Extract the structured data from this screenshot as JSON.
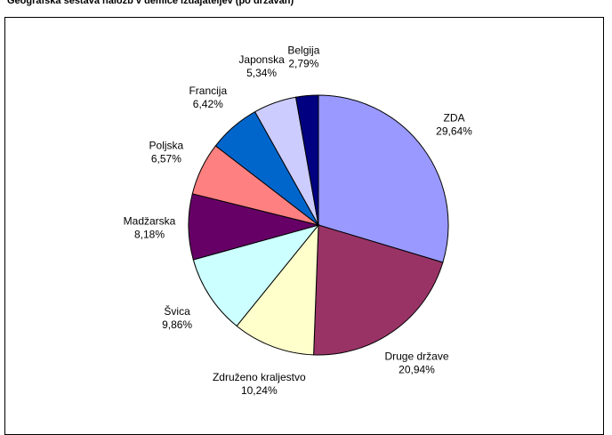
{
  "chart_data": {
    "type": "pie",
    "title": "Geografska sestava naložb v demice izdajateljev (po državah)",
    "start_angle_deg": 0,
    "direction": "clockwise",
    "slices": [
      {
        "label": "ZDA",
        "value": 29.64,
        "value_label": "29,64%",
        "color": "#9999ff"
      },
      {
        "label": "Druge države",
        "value": 20.94,
        "value_label": "20,94%",
        "color": "#993366"
      },
      {
        "label": "Združeno kraljestvo",
        "value": 10.24,
        "value_label": "10,24%",
        "color": "#ffffcc"
      },
      {
        "label": "Švica",
        "value": 9.86,
        "value_label": "9,86%",
        "color": "#ccffff"
      },
      {
        "label": "Madžarska",
        "value": 8.18,
        "value_label": "8,18%",
        "color": "#660066"
      },
      {
        "label": "Poljska",
        "value": 6.57,
        "value_label": "6,57%",
        "color": "#ff8080"
      },
      {
        "label": "Francija",
        "value": 6.42,
        "value_label": "6,42%",
        "color": "#0066cc"
      },
      {
        "label": "Japonska",
        "value": 5.34,
        "value_label": "5,34%",
        "color": "#ccccff"
      },
      {
        "label": "Belgija",
        "value": 2.79,
        "value_label": "2,79%",
        "color": "#000080"
      }
    ]
  }
}
